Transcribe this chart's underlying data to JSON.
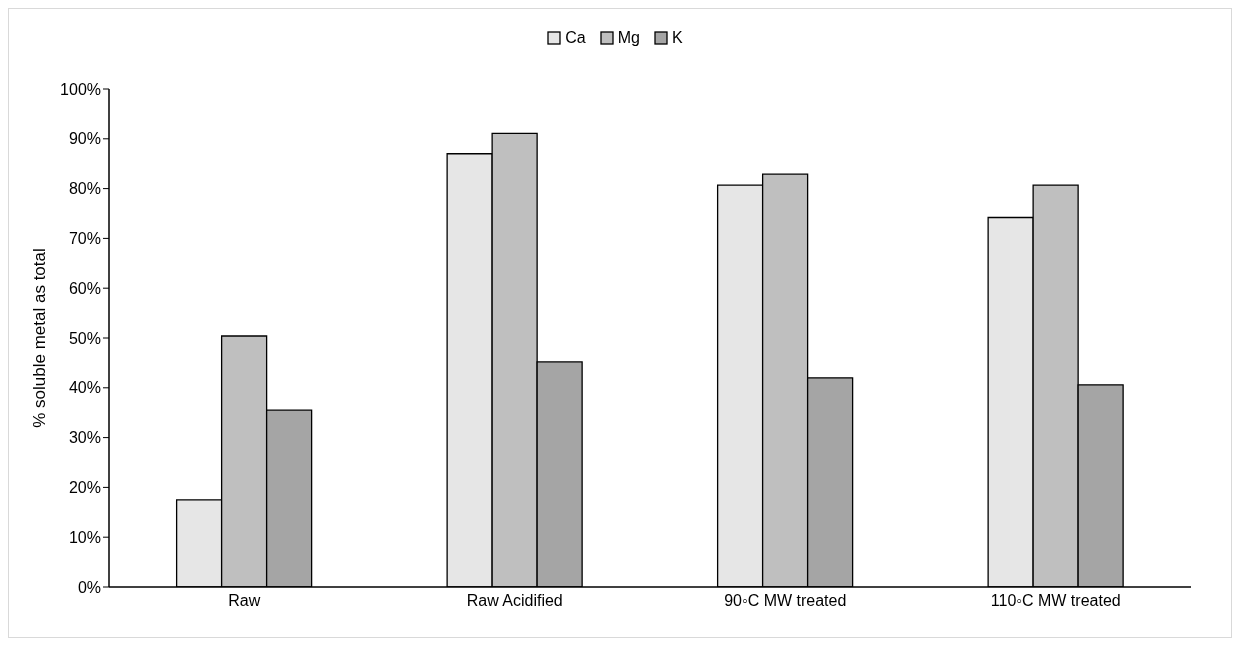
{
  "chart_data": {
    "type": "bar",
    "ylabel": "% soluble metal as total",
    "categories": [
      "Raw",
      "Raw Acidified",
      "90◦C MW treated",
      "110◦C MW treated"
    ],
    "series": [
      {
        "name": "Ca",
        "color": "#e6e6e6",
        "values": [
          17.5,
          87.0,
          80.7,
          74.2
        ]
      },
      {
        "name": "Mg",
        "color": "#bfbfbf",
        "values": [
          50.4,
          91.1,
          82.9,
          80.7
        ]
      },
      {
        "name": "K",
        "color": "#a5a5a5",
        "values": [
          35.5,
          45.2,
          42.0,
          40.6
        ]
      }
    ],
    "ylim": [
      0,
      100
    ],
    "yticks": [
      {
        "value": 0,
        "label": "0%"
      },
      {
        "value": 10,
        "label": "10%"
      },
      {
        "value": 20,
        "label": "20%"
      },
      {
        "value": 30,
        "label": "30%"
      },
      {
        "value": 40,
        "label": "40%"
      },
      {
        "value": 50,
        "label": "50%"
      },
      {
        "value": 60,
        "label": "60%"
      },
      {
        "value": 70,
        "label": "70%"
      },
      {
        "value": 80,
        "label": "80%"
      },
      {
        "value": 90,
        "label": "90%"
      },
      {
        "value": 100,
        "label": "100%"
      }
    ],
    "grid": false,
    "legend": "top"
  }
}
